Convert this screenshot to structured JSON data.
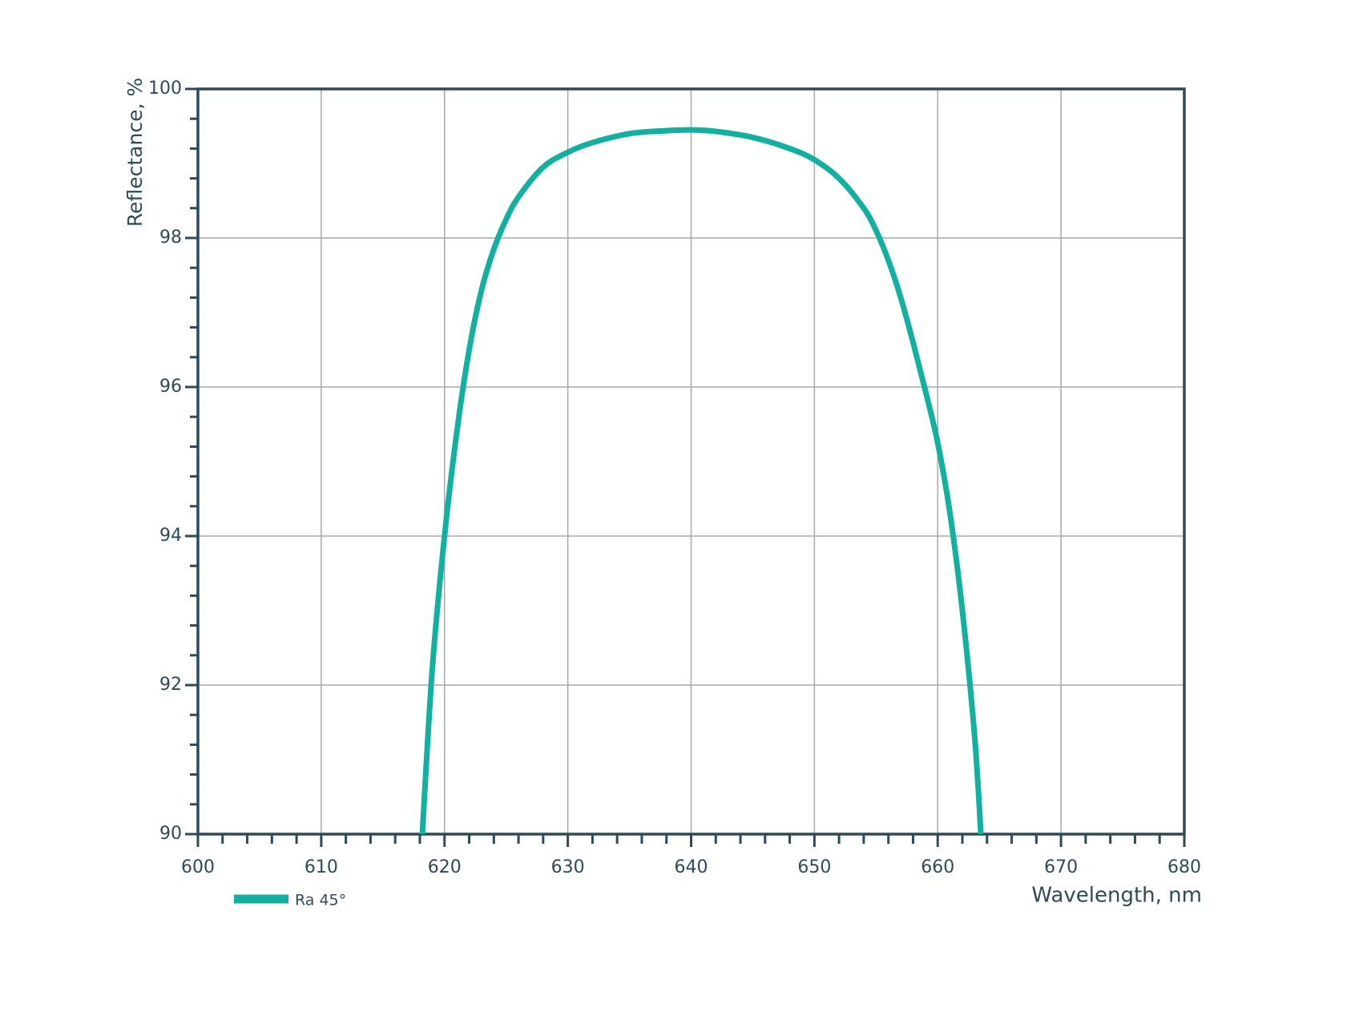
{
  "chart_data": {
    "type": "line",
    "x_label": "Wavelength, nm",
    "y_label": "Reflectance, %",
    "x": [
      618.2,
      619,
      620,
      621,
      622,
      623,
      624,
      625,
      626,
      628,
      630,
      632,
      635,
      638,
      640,
      642,
      645,
      648,
      650,
      652,
      654,
      655,
      656,
      657,
      658,
      659,
      660,
      661,
      662,
      663,
      663.5
    ],
    "series": [
      {
        "name": "Ra 45°",
        "color": "#12b0a0",
        "values": [
          90,
          92.2,
          94,
          95.4,
          96.5,
          97.3,
          97.85,
          98.25,
          98.55,
          98.95,
          99.15,
          99.28,
          99.4,
          99.44,
          99.45,
          99.43,
          99.35,
          99.2,
          99.05,
          98.8,
          98.4,
          98.1,
          97.7,
          97.2,
          96.6,
          95.95,
          95.25,
          94.3,
          93,
          91.3,
          90
        ]
      }
    ],
    "xlim": [
      600,
      680
    ],
    "xticks": [
      600,
      610,
      620,
      630,
      640,
      650,
      660,
      670,
      680
    ],
    "ylim": [
      90,
      100
    ],
    "yticks": [
      90,
      92,
      94,
      96,
      98,
      100
    ],
    "grid": true,
    "legend": "bottom-left"
  }
}
